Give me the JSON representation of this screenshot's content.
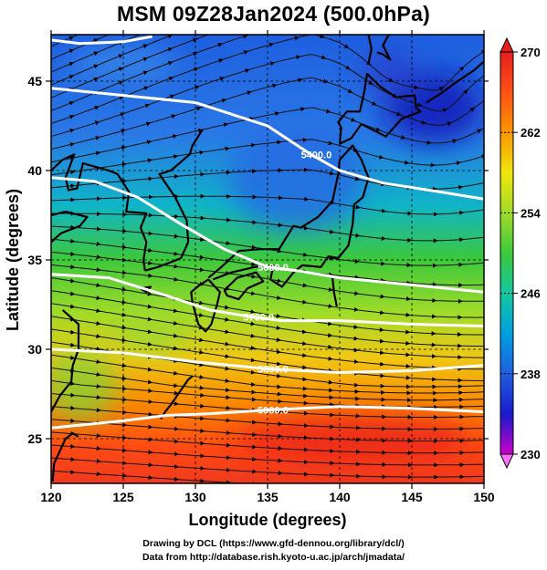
{
  "title": "MSM 09Z28Jan2024 (500.0hPa)",
  "xaxis": {
    "label": "Longitude (degrees)",
    "range": [
      120,
      150
    ],
    "ticks": [
      120,
      125,
      130,
      135,
      140,
      145,
      150
    ],
    "tick_labels": [
      "120",
      "125",
      "130",
      "135",
      "140",
      "145",
      "150"
    ]
  },
  "yaxis": {
    "label": "Latitude  (degrees)",
    "range": [
      22.5,
      47.6
    ],
    "ticks": [
      25,
      30,
      35,
      40,
      45
    ],
    "tick_labels": [
      "25",
      "30",
      "35",
      "40",
      "45"
    ]
  },
  "colorbar": {
    "min": 230,
    "max": 270,
    "ticks": [
      230,
      238,
      246,
      254,
      262,
      270
    ],
    "tick_labels": [
      "230",
      "238",
      "246",
      "254",
      "262",
      "270"
    ],
    "colors": [
      "#cc00cc",
      "#1a1acc",
      "#1e5fe0",
      "#00a0e0",
      "#14c8a0",
      "#3cc83c",
      "#a0dc28",
      "#f0e60a",
      "#fa9600",
      "#ff5014",
      "#e61e1e"
    ]
  },
  "contours": {
    "color": "#ffffff",
    "lines": [
      {
        "label": "5400.0",
        "points": [
          [
            120,
            44.6
          ],
          [
            125,
            44.2
          ],
          [
            130,
            43.8
          ],
          [
            135,
            42.5
          ],
          [
            138,
            40.9
          ],
          [
            140,
            40.0
          ],
          [
            143,
            39.3
          ],
          [
            147,
            38.8
          ],
          [
            150,
            38.4
          ]
        ]
      },
      {
        "label": "5600.0",
        "points": [
          [
            120,
            39.6
          ],
          [
            123,
            39.4
          ],
          [
            126,
            38.5
          ],
          [
            129,
            37.0
          ],
          [
            132,
            35.6
          ],
          [
            135,
            34.6
          ],
          [
            137,
            34.4
          ],
          [
            140,
            34.0
          ],
          [
            145,
            33.6
          ],
          [
            150,
            33.2
          ]
        ]
      },
      {
        "label": "5700.0",
        "points": [
          [
            120,
            34.2
          ],
          [
            124,
            34.0
          ],
          [
            128,
            33.0
          ],
          [
            131,
            32.2
          ],
          [
            134,
            31.8
          ],
          [
            136,
            31.6
          ],
          [
            140,
            31.6
          ],
          [
            145,
            31.4
          ],
          [
            150,
            31.3
          ]
        ]
      },
      {
        "label": "5800.0",
        "points": [
          [
            120,
            30.0
          ],
          [
            125,
            29.8
          ],
          [
            130,
            29.3
          ],
          [
            135,
            28.9
          ],
          [
            140,
            28.7
          ],
          [
            145,
            28.8
          ],
          [
            150,
            29.1
          ]
        ]
      },
      {
        "label": "5900.0",
        "points": [
          [
            120,
            25.6
          ],
          [
            125,
            26.0
          ],
          [
            128,
            26.3
          ],
          [
            131,
            26.4
          ],
          [
            135,
            26.6
          ],
          [
            140,
            26.8
          ],
          [
            145,
            26.7
          ],
          [
            150,
            26.5
          ]
        ]
      },
      {
        "label": "",
        "points": [
          [
            120,
            47.3
          ],
          [
            122,
            47.1
          ],
          [
            125,
            47.2
          ],
          [
            127,
            47.5
          ]
        ]
      }
    ]
  },
  "credits": [
    "Drawing by DCL (https://www.gfd-dennou.org/library/dcl/)",
    "Data from http://database.rish.kyoto-u.ac.jp/arch/jmadata/"
  ]
}
